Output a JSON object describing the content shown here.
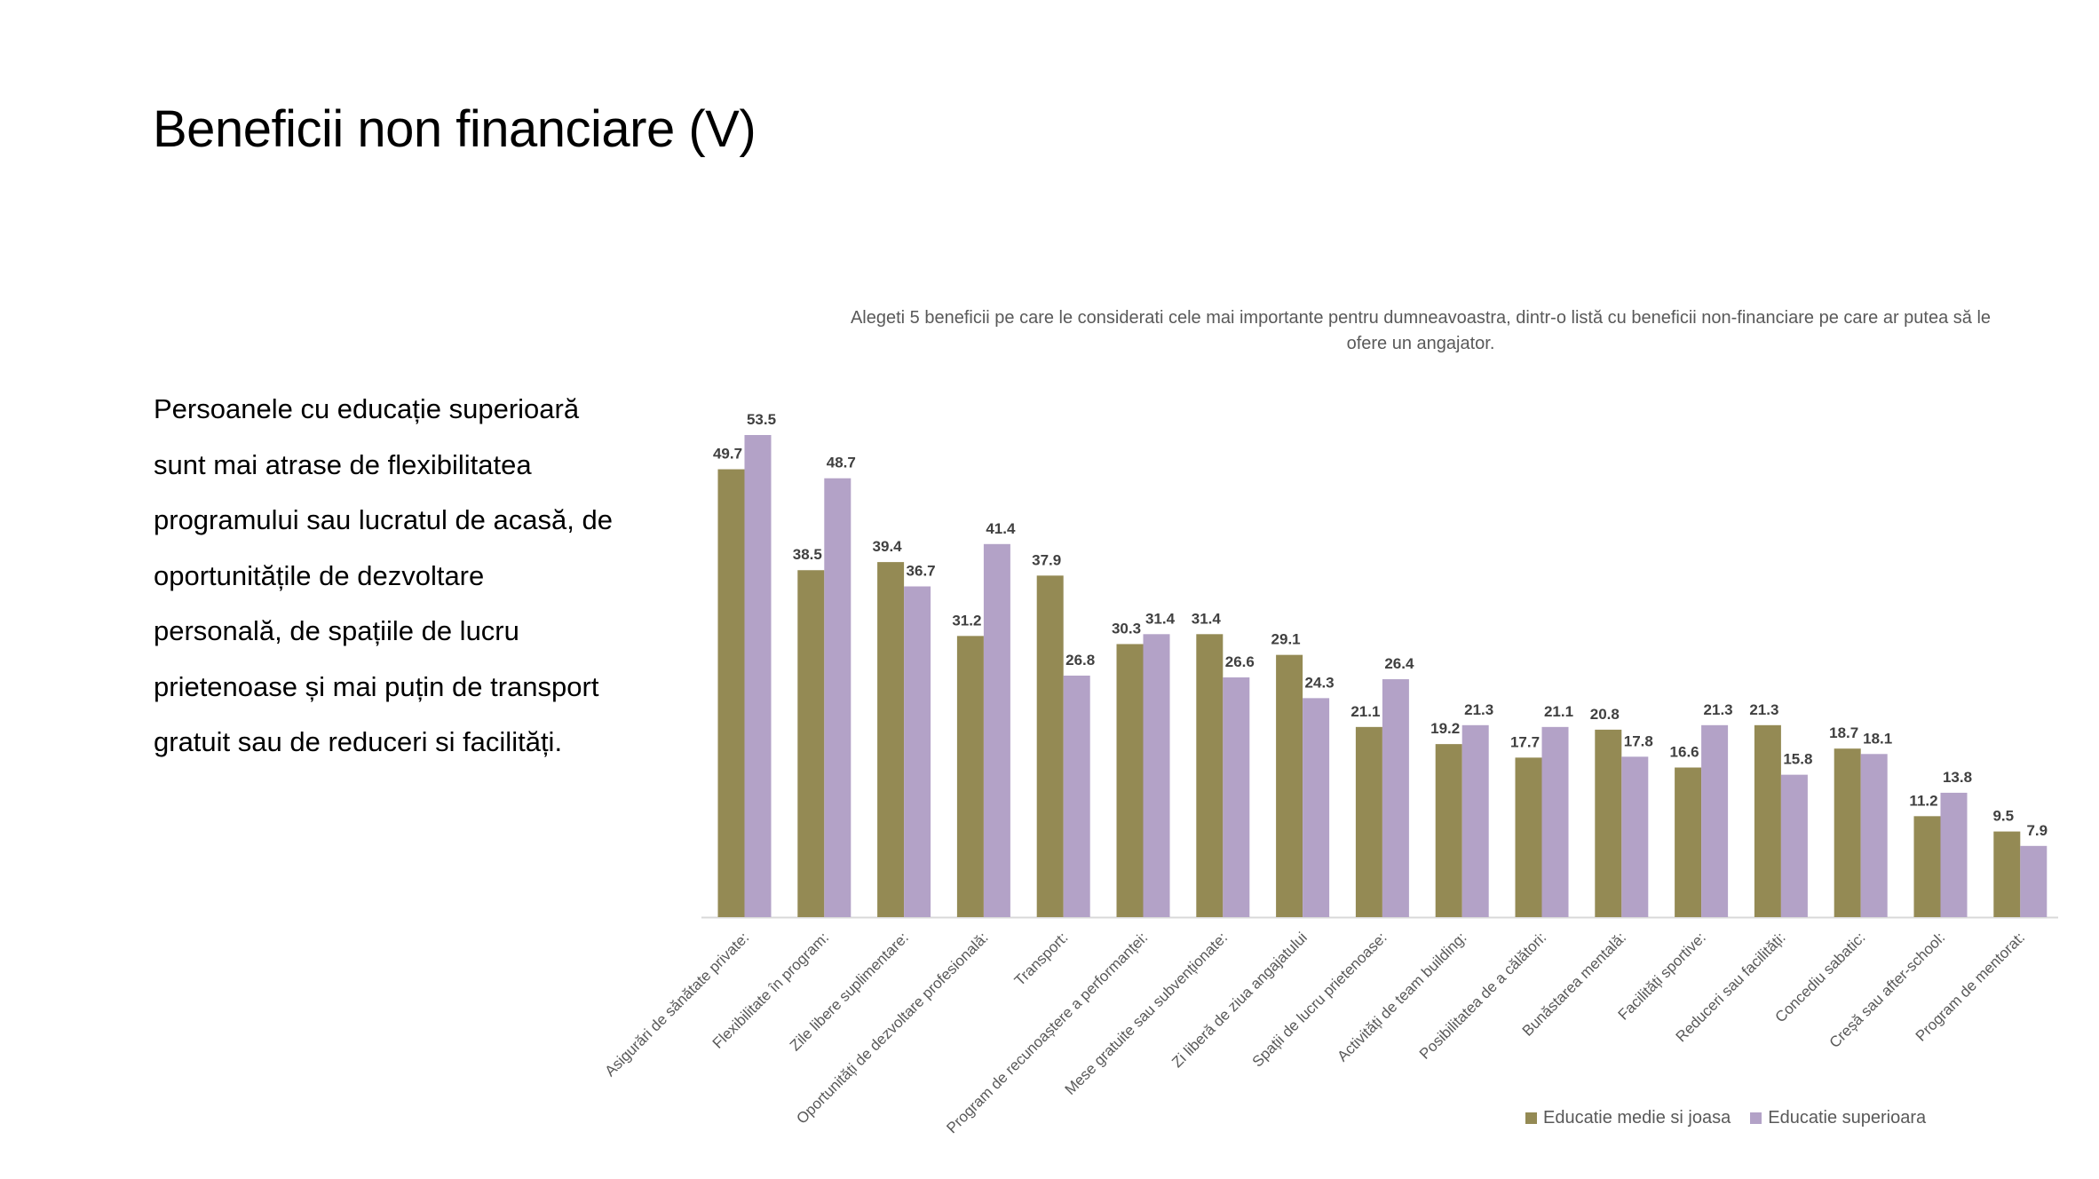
{
  "slide": {
    "title": "Beneficii non financiare (V)",
    "body_lines": [
      "Persoanele cu educație superioară",
      "sunt mai atrase de flexibilitatea",
      "programului sau lucratul de acasă, de",
      "oportunitățile de dezvoltare",
      "personală, de spațiile de lucru",
      "prietenoase și mai puțin de transport",
      "gratuit sau de reduceri si facilități."
    ]
  },
  "chart_data": {
    "type": "bar",
    "title": "Alegeti 5 beneficii pe care le considerati cele mai importante pentru dumneavoastra, dintr-o listă cu beneficii non-financiare pe care ar putea să le ofere un angajator.",
    "categories": [
      "Asigurări de sănătate private:",
      "Flexibilitate în program:",
      "Zile libere suplimentare:",
      "Oportunități de dezvoltare profesională:",
      "Transport:",
      "Program de recunoaștere a performanței:",
      "Mese gratuite sau subvenționate:",
      "Zi liberă de ziua angajatului",
      "Spații de lucru prietenoase:",
      "Activități de team building:",
      "Posibilitatea de a călători:",
      "Bunăstarea mentală:",
      "Facilități sportive:",
      "Reduceri sau facilități:",
      "Concediu sabatic:",
      "Creșă sau after-school:",
      "Program de mentorat:"
    ],
    "series": [
      {
        "name": "Educatie medie si joasa",
        "color": "#948A54",
        "values": [
          49.7,
          38.5,
          39.4,
          31.2,
          37.9,
          30.3,
          31.4,
          29.1,
          21.1,
          19.2,
          17.7,
          20.8,
          16.6,
          21.3,
          18.7,
          11.2,
          9.5
        ]
      },
      {
        "name": "Educatie superioara",
        "color": "#B3A2C7",
        "values": [
          53.5,
          48.7,
          36.7,
          41.4,
          26.8,
          31.4,
          26.6,
          24.3,
          26.4,
          21.3,
          21.1,
          17.8,
          21.3,
          15.8,
          18.1,
          13.8,
          7.9
        ]
      }
    ],
    "ylim": [
      0,
      53.5
    ],
    "grid": false,
    "legend_position": "bottom-right",
    "axis_color": "#D9D9D9"
  }
}
